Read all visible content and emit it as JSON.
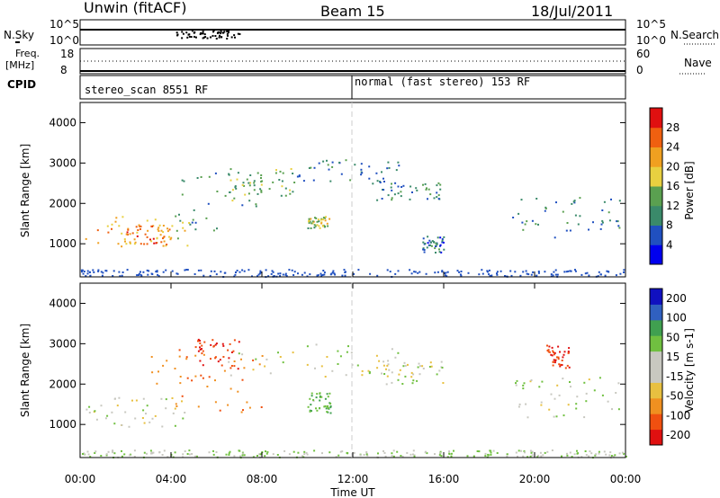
{
  "header": {
    "station": "Unwin (fitACF)",
    "beam": "Beam 15",
    "date": "18/Jul/2011"
  },
  "noise_panel": {
    "left_label": "N.Sky",
    "left_ticks": [
      "10^5",
      "10^0"
    ],
    "right_ticks": [
      "10^5",
      "10^0"
    ],
    "right_label": "N.Search"
  },
  "freq_panel": {
    "left_label_top": "Freq.",
    "left_label_unit": "[MHz]",
    "left_ticks": [
      "18",
      "8"
    ],
    "right_ticks": [
      "60",
      "0"
    ],
    "right_label": "Nave"
  },
  "cpid_panel": {
    "label": "CPID",
    "segments": [
      {
        "name": "stereo_scan 8551 RF",
        "start_hour": 0,
        "end_hour": 12
      },
      {
        "name": "normal (fast stereo) 153 RF",
        "start_hour": 12,
        "end_hour": 24
      }
    ]
  },
  "colors": {
    "power_scale": [
      "#0000ee",
      "#2050c0",
      "#3a8a6a",
      "#5aa050",
      "#e8d040",
      "#f0a020",
      "#f06010",
      "#e01010"
    ],
    "velocity_scale": [
      "#e01010",
      "#f05010",
      "#f09020",
      "#e8c040",
      "#c8c8c0",
      "#c8c8c0",
      "#70c040",
      "#40a050",
      "#3060c0",
      "#1010c0"
    ]
  },
  "chart_data": [
    {
      "type": "heatmap",
      "title": "Power",
      "ylabel": "Slant Range [km]",
      "xlabel": "",
      "x_ticks": [
        "00:00",
        "04:00",
        "08:00",
        "12:00",
        "16:00",
        "20:00",
        "00:00"
      ],
      "xlim_hours": [
        0,
        24
      ],
      "ylim": [
        180,
        4500
      ],
      "y_ticks": [
        1000,
        2000,
        3000,
        4000
      ],
      "colorbar_label": "Power [dB]",
      "colorbar_ticks": [
        "4",
        "8",
        "12",
        "16",
        "20",
        "24",
        "28"
      ],
      "echo_bands": [
        {
          "t0": 0.2,
          "t1": 4.8,
          "r0": 950,
          "r1": 1700,
          "level": 20
        },
        {
          "t0": 4.0,
          "t1": 8.0,
          "r0": 1300,
          "r1": 2900,
          "level": 12
        },
        {
          "t0": 6.5,
          "t1": 9.5,
          "r0": 2200,
          "r1": 2900,
          "level": 14
        },
        {
          "t0": 9.5,
          "t1": 14.0,
          "r0": 2500,
          "r1": 3100,
          "level": 8
        },
        {
          "t0": 13.0,
          "t1": 16.0,
          "r0": 2100,
          "r1": 2600,
          "level": 10
        },
        {
          "t0": 10.0,
          "t1": 11.0,
          "r0": 1400,
          "r1": 1700,
          "level": 16
        },
        {
          "t0": 15.0,
          "t1": 16.0,
          "r0": 800,
          "r1": 1200,
          "level": 8
        },
        {
          "t0": 19.0,
          "t1": 24.0,
          "r0": 1100,
          "r1": 2200,
          "level": 10
        },
        {
          "t0": 2.0,
          "t1": 4.0,
          "r0": 1000,
          "r1": 1500,
          "level": 24
        }
      ]
    },
    {
      "type": "heatmap",
      "title": "Velocity",
      "ylabel": "Slant Range [km]",
      "xlabel": "Time UT",
      "x_ticks": [
        "00:00",
        "04:00",
        "08:00",
        "12:00",
        "16:00",
        "20:00",
        "00:00"
      ],
      "xlim_hours": [
        0,
        24
      ],
      "ylim": [
        180,
        4500
      ],
      "y_ticks": [
        1000,
        2000,
        3000,
        4000
      ],
      "colorbar_label": "Velocity [m s-1]",
      "colorbar_ticks": [
        "200",
        "100",
        "50",
        "15",
        "-15",
        "-50",
        "-100",
        "-200"
      ],
      "echo_bands": [
        {
          "t0": 0.2,
          "t1": 4.8,
          "r0": 950,
          "r1": 1700,
          "level": 0
        },
        {
          "t0": 3.0,
          "t1": 8.0,
          "r0": 1300,
          "r1": 2900,
          "level": -60
        },
        {
          "t0": 5.0,
          "t1": 7.0,
          "r0": 2400,
          "r1": 3200,
          "level": -150
        },
        {
          "t0": 6.5,
          "t1": 14.0,
          "r0": 2200,
          "r1": 3000,
          "level": 0
        },
        {
          "t0": 13.0,
          "t1": 16.0,
          "r0": 2000,
          "r1": 2600,
          "level": 0
        },
        {
          "t0": 10.0,
          "t1": 11.0,
          "r0": 1300,
          "r1": 1800,
          "level": 40
        },
        {
          "t0": 19.0,
          "t1": 24.0,
          "r0": 1100,
          "r1": 2200,
          "level": 0
        },
        {
          "t0": 20.5,
          "t1": 21.5,
          "r0": 2400,
          "r1": 3000,
          "level": -150
        }
      ]
    }
  ]
}
